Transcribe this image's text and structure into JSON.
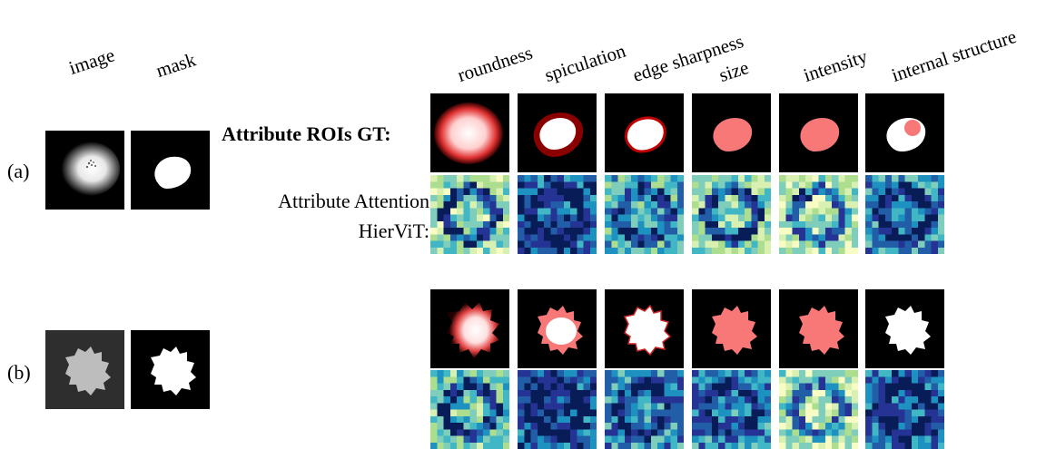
{
  "left_headers": [
    "image",
    "mask"
  ],
  "attribute_headers": [
    "roundness",
    "spiculation",
    "edge sharpness",
    "size",
    "intensity",
    "internal structure"
  ],
  "row_labels": [
    "(a)",
    "(b)"
  ],
  "gt_label": "Attribute ROIs GT:",
  "attention_label_line1": "Attribute Attention",
  "attention_label_line2": "HierViT:",
  "colors": {
    "roi_fill": "#f87878",
    "roi_dark_red": "#a00000",
    "heat_low": "#f5fbc8",
    "heat_high": "#0a2a7a"
  }
}
